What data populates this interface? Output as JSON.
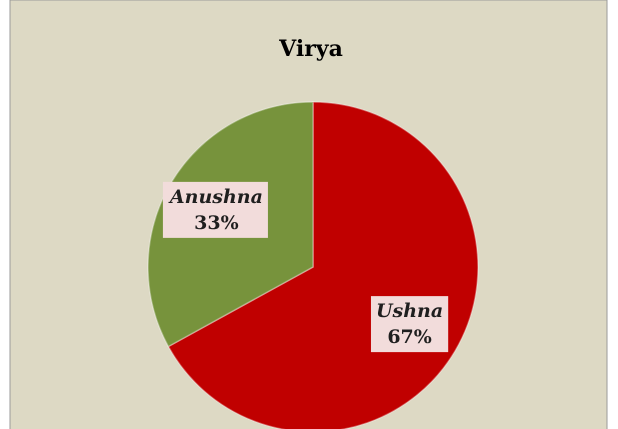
{
  "chart_data": {
    "type": "pie",
    "title": "Virya",
    "categories": [
      "Ushna",
      "Anushna"
    ],
    "values": [
      67,
      33
    ],
    "value_labels": [
      "67%",
      "33%"
    ],
    "colors": [
      "#c00000",
      "#77933c"
    ]
  }
}
